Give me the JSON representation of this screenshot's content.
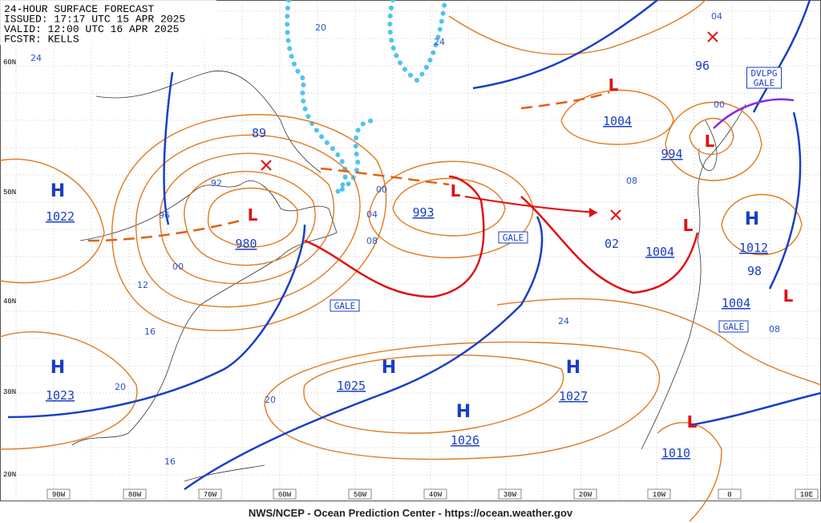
{
  "header": {
    "lines": [
      "24-HOUR SURFACE FORECAST",
      "ISSUED: 17:17 UTC 15 APR 2025",
      "VALID:  12:00 UTC 16 APR 2025",
      "FCSTR:  KELLS"
    ]
  },
  "longitudes": [
    "90W",
    "80W",
    "70W",
    "60W",
    "50W",
    "40W",
    "30W",
    "20W",
    "10W",
    "0",
    "10E"
  ],
  "latitudes": [
    "60N",
    "50N",
    "40N",
    "30N",
    "20N"
  ],
  "highs": [
    {
      "symbol": "H",
      "pressure": "1022"
    },
    {
      "symbol": "H",
      "pressure": "1023"
    },
    {
      "symbol": "H",
      "pressure": "1025"
    },
    {
      "symbol": "H",
      "pressure": "1026"
    },
    {
      "symbol": "H",
      "pressure": "1027"
    },
    {
      "symbol": "H",
      "pressure": "1012"
    }
  ],
  "lows": [
    {
      "symbol": "L",
      "pressure": "980"
    },
    {
      "symbol": "L",
      "pressure": "993"
    },
    {
      "symbol": "L",
      "pressure": "1004"
    },
    {
      "symbol": "L",
      "pressure": "994"
    },
    {
      "symbol": "L",
      "pressure": "1004"
    },
    {
      "symbol": "L",
      "pressure": "1010"
    },
    {
      "symbol": "L",
      "pressure": "1004"
    }
  ],
  "pressure_labels": [
    "89",
    "96",
    "02",
    "98"
  ],
  "isobar_labels": [
    "20",
    "24",
    "24",
    "92",
    "96",
    "00",
    "12",
    "16",
    "20",
    "20",
    "16",
    "00",
    "04",
    "08",
    "24",
    "08",
    "04",
    "00",
    "08"
  ],
  "warnings": [
    "GALE",
    "GALE",
    "GALE",
    "DVLPG GALE"
  ],
  "footer": "NWS/NCEP - Ocean Prediction Center - https://ocean.weather.gov"
}
